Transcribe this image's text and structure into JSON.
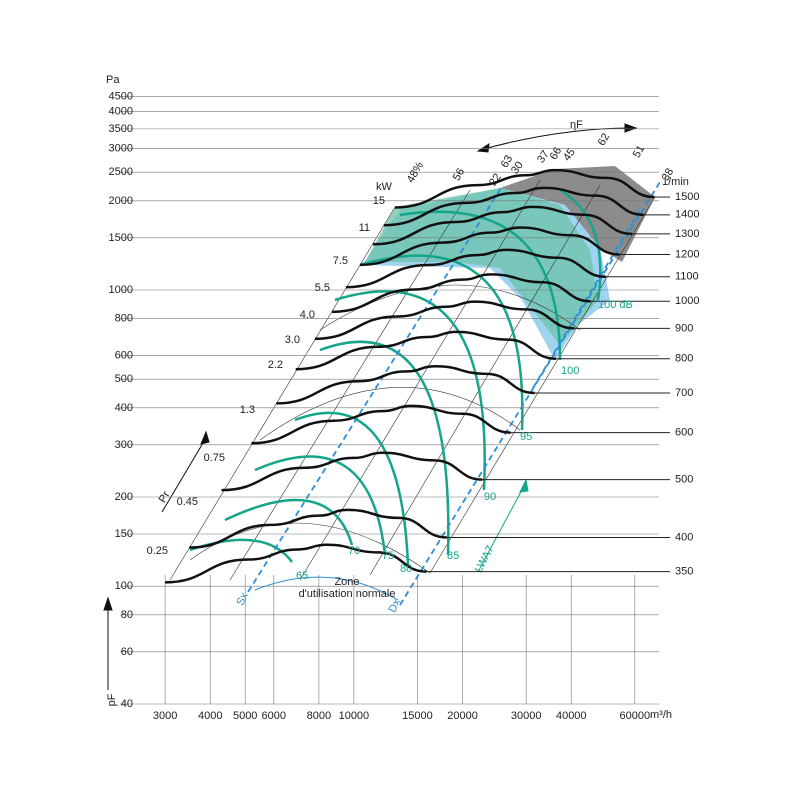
{
  "chart_data": {
    "type": "line",
    "y_unit": "Pa",
    "x_unit": "m³/h",
    "y_label": "pF",
    "speed_unit": "1/min",
    "power_unit": "kW",
    "efficiency_label": "ηF",
    "pr_label": "Pr",
    "zone_label": [
      "Zone",
      "d'utilisation normale"
    ],
    "sx_label": "Sx",
    "dx_label": "Dx",
    "lwa_label": "LWA7",
    "log_x": true,
    "log_y": true,
    "xlim": [
      2250,
      70000
    ],
    "ylim": [
      40,
      5000
    ],
    "xticks": [
      3000,
      4000,
      5000,
      6000,
      8000,
      10000,
      15000,
      20000,
      30000,
      40000,
      60000
    ],
    "yticks": [
      40,
      60,
      80,
      100,
      150,
      200,
      300,
      400,
      500,
      600,
      800,
      1000,
      1500,
      2000,
      2500,
      3000,
      3500,
      4000,
      4500
    ],
    "power_labels": [
      "45",
      "37",
      "30",
      "22",
      "15",
      "11",
      "7.5",
      "5.5",
      "4.0",
      "3.0",
      "2.2",
      "1.3",
      "0.75",
      "0.45",
      "0.25"
    ],
    "efficiency_labels": [
      "48%",
      "56",
      "63",
      "66",
      "62",
      "51",
      "38"
    ],
    "sound_labels": [
      "65",
      "70",
      "75",
      "80",
      "85",
      "90",
      "95",
      "100",
      "100 dB"
    ],
    "series": [
      {
        "name": "1500",
        "color": "#111111",
        "x": [
          13000,
          22000,
          30000,
          36000,
          50000,
          68000
        ],
        "values": [
          1900,
          2260,
          2440,
          2540,
          2390,
          2060
        ]
      },
      {
        "name": "1400",
        "color": "#111111",
        "x": [
          12100,
          20500,
          28000,
          33600,
          46700,
          63500
        ],
        "values": [
          1655,
          1969,
          2125,
          2213,
          2082,
          1794
        ]
      },
      {
        "name": "1300",
        "color": "#111111",
        "x": [
          11300,
          19100,
          26000,
          31200,
          43300,
          58900
        ],
        "values": [
          1427,
          1697,
          1833,
          1908,
          1795,
          1547
        ]
      },
      {
        "name": "1200",
        "color": "#111111",
        "x": [
          10400,
          17600,
          24000,
          28800,
          40000,
          54400
        ],
        "values": [
          1216,
          1446,
          1562,
          1626,
          1530,
          1318
        ]
      },
      {
        "name": "1100",
        "color": "#111111",
        "x": [
          9500,
          16100,
          22000,
          26400,
          36700,
          49900
        ],
        "values": [
          1022,
          1215,
          1312,
          1366,
          1285,
          1108
        ]
      },
      {
        "name": "1000",
        "color": "#111111",
        "x": [
          8700,
          14700,
          20000,
          24000,
          33300,
          45300
        ],
        "values": [
          844,
          1004,
          1084,
          1129,
          1062,
          916
        ]
      },
      {
        "name": "900",
        "color": "#111111",
        "x": [
          7800,
          13200,
          18000,
          21600,
          30000,
          40800
        ],
        "values": [
          684,
          814,
          878,
          914,
          860,
          742
        ]
      },
      {
        "name": "800",
        "color": "#111111",
        "x": [
          6900,
          11700,
          16000,
          19200,
          26700,
          36300
        ],
        "values": [
          540,
          643,
          694,
          722,
          680,
          586
        ]
      },
      {
        "name": "700",
        "color": "#111111",
        "x": [
          6100,
          10300,
          14000,
          16800,
          23300,
          31700
        ],
        "values": [
          414,
          492,
          531,
          553,
          521,
          449
        ]
      },
      {
        "name": "600",
        "color": "#111111",
        "x": [
          5200,
          8800,
          12000,
          14400,
          20000,
          27200
        ],
        "values": [
          304,
          362,
          390,
          406,
          382,
          330
        ]
      },
      {
        "name": "500",
        "color": "#111111",
        "x": [
          4300,
          7300,
          10000,
          12000,
          16700,
          22700
        ],
        "values": [
          211,
          251,
          271,
          282,
          266,
          229
        ]
      },
      {
        "name": "400",
        "color": "#111111",
        "x": [
          3500,
          5900,
          8000,
          9600,
          13300,
          18100
        ],
        "values": [
          135,
          161,
          173,
          181,
          170,
          146
        ]
      },
      {
        "name": "350",
        "color": "#111111",
        "x": [
          3000,
          5100,
          7000,
          8400,
          11700,
          15900
        ],
        "values": [
          103,
          123,
          133,
          138,
          130,
          112
        ]
      }
    ]
  }
}
